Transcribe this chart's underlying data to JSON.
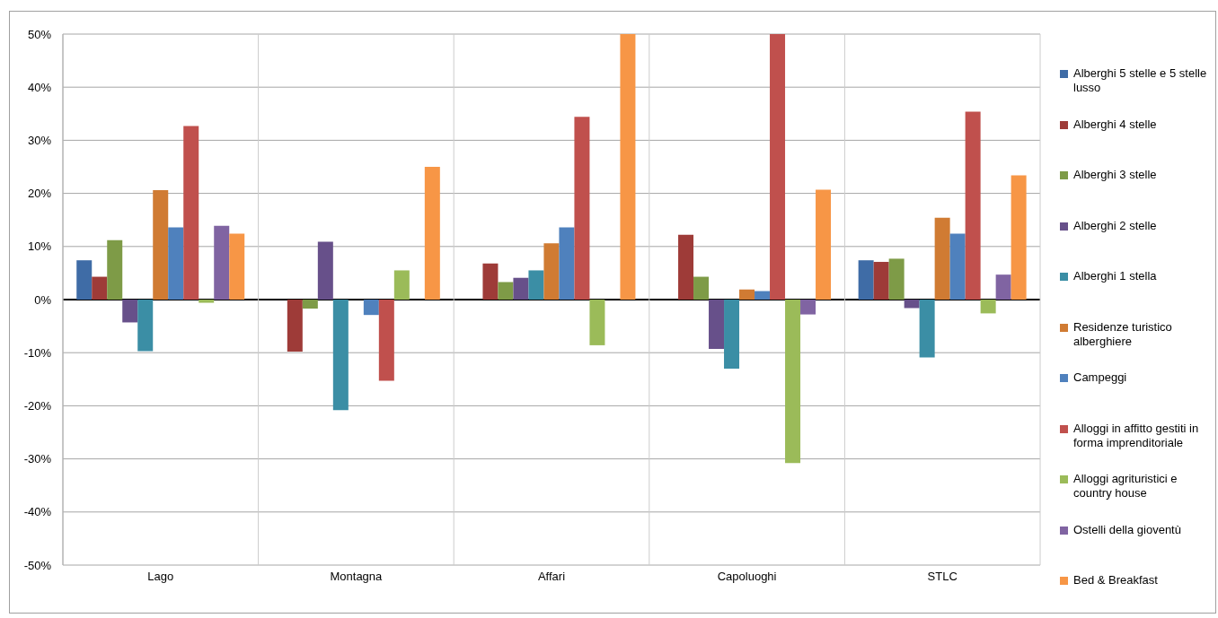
{
  "chart_data": {
    "type": "bar",
    "categories": [
      "Lago",
      "Montagna",
      "Affari",
      "Capoluoghi",
      "STLC"
    ],
    "series": [
      {
        "name": "Alberghi 5 stelle e 5 stelle lusso",
        "color": "#3f6ca6",
        "values": [
          7.4,
          null,
          null,
          null,
          7.4
        ]
      },
      {
        "name": "Alberghi 4 stelle",
        "color": "#9e3b38",
        "values": [
          4.3,
          -9.8,
          6.8,
          12.2,
          7.1
        ]
      },
      {
        "name": "Alberghi 3 stelle",
        "color": "#7e9b47",
        "values": [
          11.2,
          -1.7,
          3.3,
          4.3,
          7.7
        ]
      },
      {
        "name": "Alberghi 2 stelle",
        "color": "#67508a",
        "values": [
          -4.3,
          10.9,
          4.1,
          -9.3,
          -1.6
        ]
      },
      {
        "name": "Alberghi 1 stella",
        "color": "#3b8ea5",
        "values": [
          -9.7,
          -20.8,
          5.5,
          -13.0,
          -10.9
        ]
      },
      {
        "name": "Residenze turistico alberghiere",
        "color": "#d07b33",
        "values": [
          20.6,
          null,
          10.6,
          1.9,
          15.4
        ]
      },
      {
        "name": "Campeggi",
        "color": "#4f81bd",
        "values": [
          13.6,
          -2.9,
          13.6,
          1.6,
          12.4
        ]
      },
      {
        "name": "Alloggi in affitto gestiti in forma imprenditoriale",
        "color": "#c0504d",
        "values": [
          32.7,
          -15.3,
          34.4,
          50,
          35.4
        ]
      },
      {
        "name": "Alloggi agrituristici e country house",
        "color": "#9bbb59",
        "values": [
          -0.6,
          5.5,
          -8.6,
          -30.8,
          -2.6
        ]
      },
      {
        "name": "Ostelli della gioventù",
        "color": "#8064a2",
        "values": [
          13.9,
          null,
          null,
          -2.8,
          4.7
        ]
      },
      {
        "name": "Bed & Breakfast",
        "color": "#f79646",
        "values": [
          12.4,
          25.0,
          50,
          20.7,
          23.4
        ]
      }
    ],
    "ylim": [
      -50,
      50
    ],
    "yticks": [
      {
        "value": -50,
        "label": "-50%"
      },
      {
        "value": -40,
        "label": "-40%"
      },
      {
        "value": -30,
        "label": "-30%"
      },
      {
        "value": -20,
        "label": "-20%"
      },
      {
        "value": -10,
        "label": "-10%"
      },
      {
        "value": 0,
        "label": "0%"
      },
      {
        "value": 10,
        "label": "10%"
      },
      {
        "value": 20,
        "label": "20%"
      },
      {
        "value": 30,
        "label": "30%"
      },
      {
        "value": 40,
        "label": "40%"
      },
      {
        "value": 50,
        "label": "50%"
      }
    ],
    "grid": true,
    "legend": "right"
  }
}
